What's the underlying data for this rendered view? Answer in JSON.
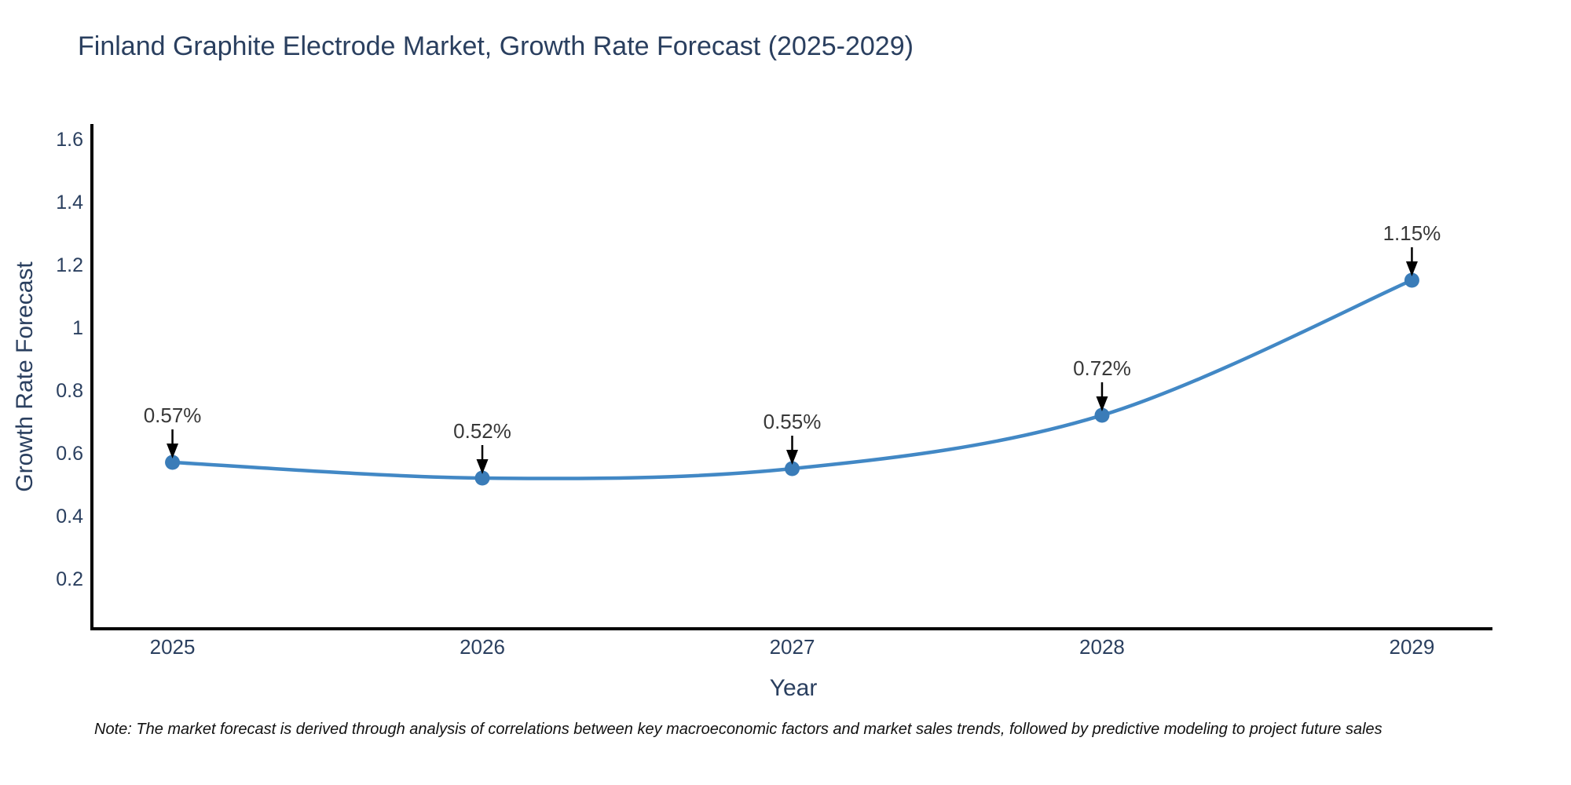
{
  "title": "Finland Graphite Electrode Market, Growth Rate Forecast (2025-2029)",
  "note": "Note: The market forecast is derived through analysis of correlations between key macroeconomic factors and market sales trends, followed by predictive modeling to project future sales",
  "chart_data": {
    "type": "line",
    "x": [
      2025,
      2026,
      2027,
      2028,
      2029
    ],
    "x_labels": [
      "2025",
      "2026",
      "2027",
      "2028",
      "2029"
    ],
    "values": [
      0.57,
      0.52,
      0.55,
      0.72,
      1.15
    ],
    "point_labels": [
      "0.57%",
      "0.52%",
      "0.55%",
      "0.72%",
      "1.15%"
    ],
    "title": "Finland Graphite Electrode Market, Growth Rate Forecast (2025-2029)",
    "xlabel": "Year",
    "ylabel": "Growth Rate Forecast",
    "yticks": [
      0.2,
      0.4,
      0.6,
      0.8,
      1,
      1.2,
      1.4,
      1.6
    ],
    "ytick_labels": [
      "0.2",
      "0.4",
      "0.6",
      "0.8",
      "1",
      "1.2",
      "1.4",
      "1.6"
    ],
    "xlim": [
      2024.74,
      2029.26
    ],
    "ylim": [
      0.04,
      1.6475
    ],
    "grid": false,
    "legend": "none",
    "line_shape": "spline",
    "colors": {
      "line": "#4288c5",
      "marker": "#3a7cb8",
      "axis": "#000000",
      "tick_label": "#2a3f5f",
      "annotation_text": "#383838",
      "annotation_arrow": "#000000",
      "title": "#2a3f5f",
      "background": "#ffffff"
    }
  }
}
